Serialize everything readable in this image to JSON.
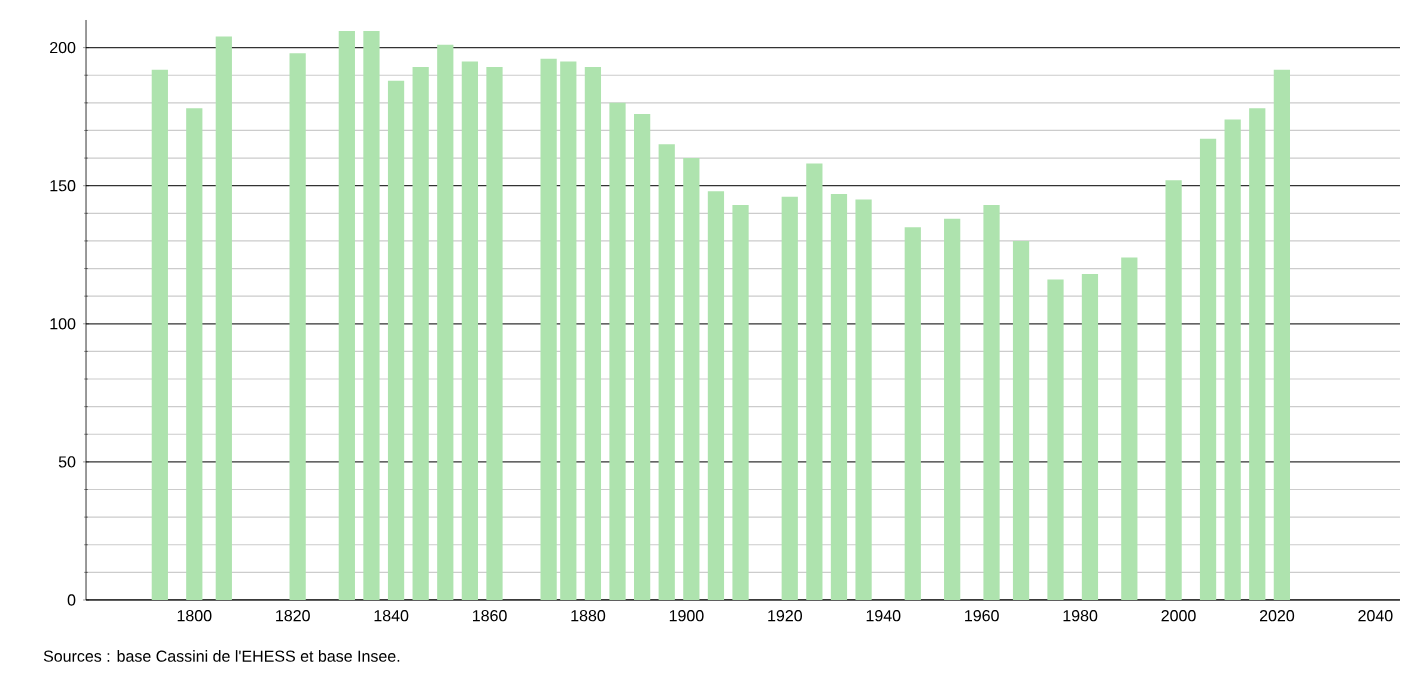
{
  "chart_data": {
    "type": "bar",
    "x": [
      1793,
      1800,
      1806,
      1821,
      1831,
      1836,
      1841,
      1846,
      1851,
      1856,
      1861,
      1872,
      1876,
      1881,
      1886,
      1891,
      1896,
      1901,
      1906,
      1911,
      1921,
      1926,
      1931,
      1936,
      1946,
      1954,
      1962,
      1968,
      1975,
      1982,
      1990,
      1999,
      2006,
      2011,
      2016,
      2021
    ],
    "values": [
      192,
      178,
      204,
      198,
      206,
      206,
      188,
      193,
      201,
      195,
      193,
      196,
      195,
      193,
      180,
      176,
      165,
      160,
      148,
      143,
      146,
      158,
      147,
      145,
      135,
      138,
      143,
      130,
      116,
      118,
      124,
      152,
      167,
      174,
      178,
      192
    ],
    "color": "#aee3ae",
    "xlim": [
      1778,
      2045
    ],
    "ylim": [
      0,
      210
    ],
    "xticks": [
      1800,
      1820,
      1840,
      1860,
      1880,
      1900,
      1920,
      1940,
      1960,
      1980,
      2000,
      2020,
      2040
    ],
    "yticks": [
      0,
      50,
      100,
      150,
      200
    ],
    "grid": "y",
    "annotations": [
      "Sources : base Cassini de l'EHESS et base Insee."
    ]
  }
}
